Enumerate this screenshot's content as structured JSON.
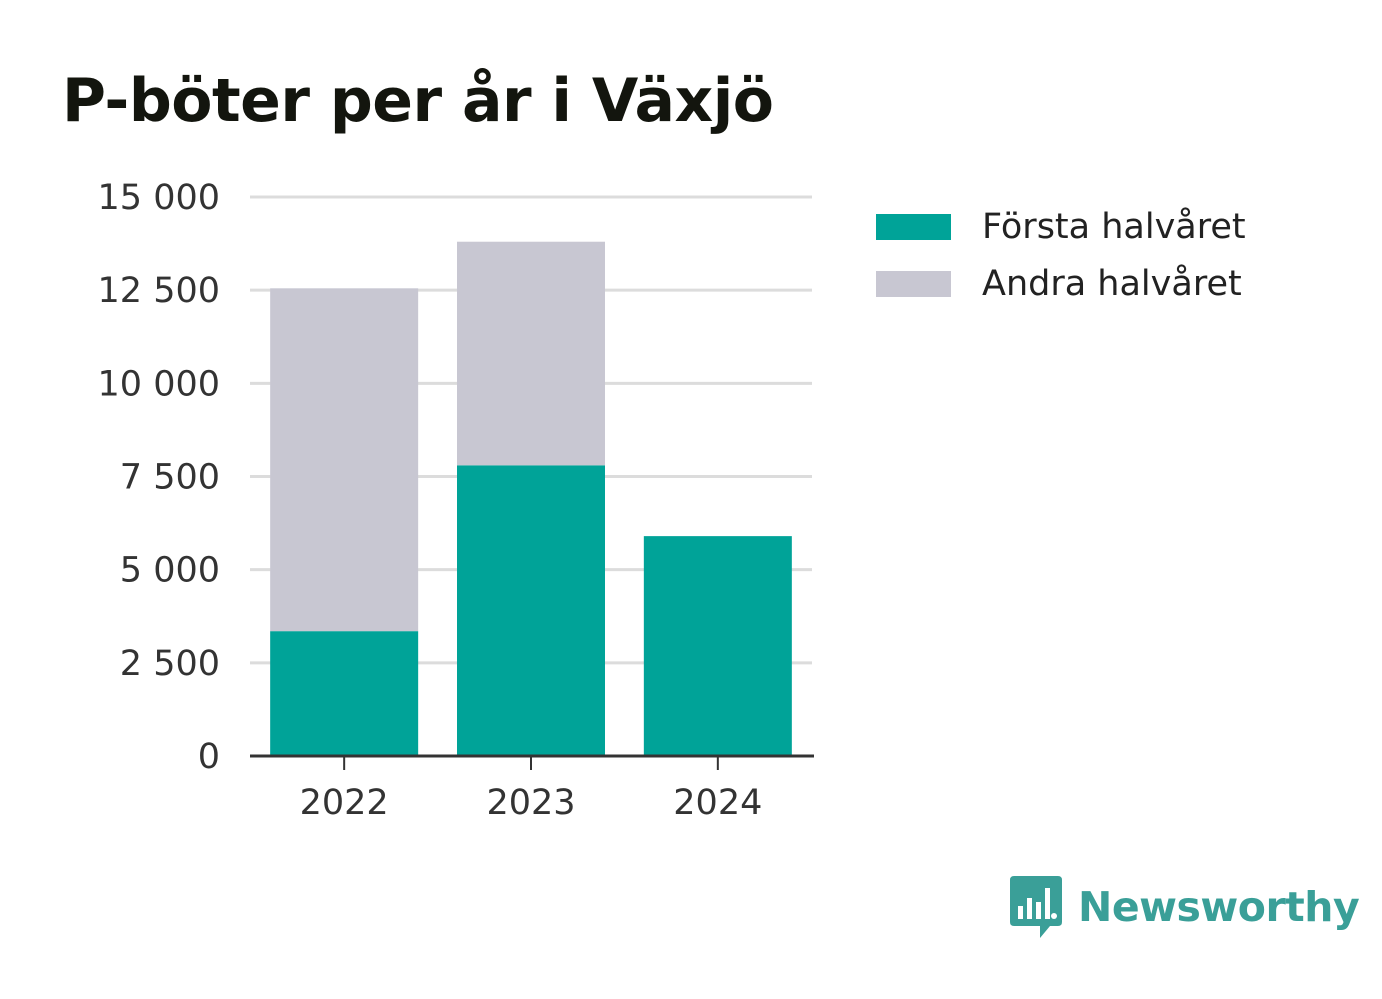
{
  "title": "P-böter per år i Växjö",
  "colors": {
    "first_half": "#00a398",
    "second_half": "#c8c7d2",
    "grid": "#dcdcdc",
    "axis": "#333333",
    "brand": "#3a9f98"
  },
  "legend": [
    {
      "label": "Första halvåret",
      "color": "#00a398"
    },
    {
      "label": "Andra halvåret",
      "color": "#c8c7d2"
    }
  ],
  "brand": {
    "name": "Newsworthy",
    "icon": "newsworthy-logo-icon"
  },
  "chart_data": {
    "type": "bar",
    "stacked": true,
    "title": "P-böter per år i Växjö",
    "categories": [
      "2022",
      "2023",
      "2024"
    ],
    "series": [
      {
        "name": "Första halvåret",
        "values": [
          3350,
          7800,
          5900
        ]
      },
      {
        "name": "Andra halvåret",
        "values": [
          9200,
          6000,
          0
        ]
      }
    ],
    "ylim": [
      0,
      15000
    ],
    "yticks": [
      0,
      2500,
      5000,
      7500,
      10000,
      12500,
      15000
    ],
    "ytick_labels": [
      "0",
      "2 500",
      "5 000",
      "7 500",
      "10 000",
      "12 500",
      "15 000"
    ],
    "xlabel": "",
    "ylabel": "",
    "grid": true,
    "legend_position": "right"
  }
}
